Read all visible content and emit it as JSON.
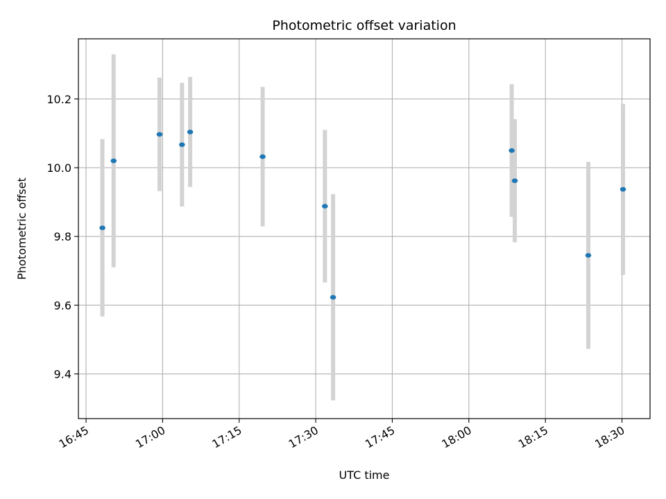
{
  "chart_data": {
    "type": "scatter",
    "title": "Photometric offset variation",
    "xlabel": "UTC time",
    "ylabel": "Photometric offset",
    "x_axis": "time",
    "xlim": [
      "16:43:30",
      "18:35:30"
    ],
    "ylim": [
      9.27,
      10.375
    ],
    "x_ticks": [
      "16:45",
      "17:00",
      "17:15",
      "17:30",
      "17:45",
      "18:00",
      "18:15",
      "18:30"
    ],
    "y_ticks": [
      9.4,
      9.6,
      9.8,
      10.0,
      10.2
    ],
    "y_tick_labels": [
      "9.4",
      "9.6",
      "9.8",
      "10.0",
      "10.2"
    ],
    "grid": true,
    "point_color": "#1f77b4",
    "errorbar_color": "#d3d3d3",
    "points": [
      {
        "time": "16:48:12",
        "y": 9.825,
        "yerr": 0.258
      },
      {
        "time": "16:50:24",
        "y": 10.02,
        "yerr": 0.31
      },
      {
        "time": "16:59:24",
        "y": 10.097,
        "yerr": 0.165
      },
      {
        "time": "17:03:48",
        "y": 10.067,
        "yerr": 0.18
      },
      {
        "time": "17:05:24",
        "y": 10.104,
        "yerr": 0.16
      },
      {
        "time": "17:19:36",
        "y": 10.032,
        "yerr": 0.203
      },
      {
        "time": "17:31:48",
        "y": 9.888,
        "yerr": 0.222
      },
      {
        "time": "17:33:24",
        "y": 9.623,
        "yerr": 0.3
      },
      {
        "time": "18:08:24",
        "y": 10.05,
        "yerr": 0.193
      },
      {
        "time": "18:09:00",
        "y": 9.962,
        "yerr": 0.179
      },
      {
        "time": "18:23:24",
        "y": 9.745,
        "yerr": 0.272
      },
      {
        "time": "18:30:12",
        "y": 9.937,
        "yerr": 0.249
      }
    ]
  }
}
